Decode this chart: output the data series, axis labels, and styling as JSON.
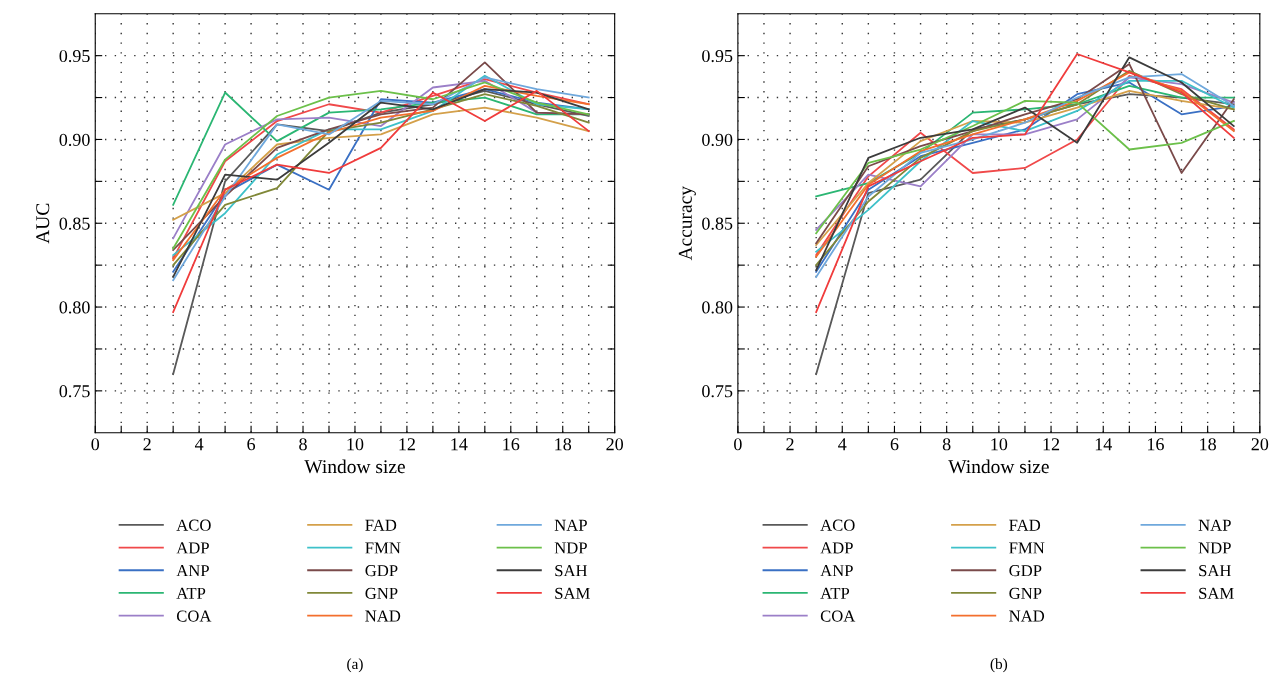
{
  "chart_data": [
    {
      "type": "line",
      "xlabel": "Window size",
      "ylabel": "AUC",
      "annotations": [
        "(a)"
      ],
      "x": [
        3,
        5,
        7,
        9,
        11,
        13,
        15,
        17,
        19
      ],
      "xlim": [
        0,
        20
      ],
      "xticks": [
        0,
        {
          "value": 1,
          "label": null
        },
        2,
        {
          "value": 3,
          "label": null
        },
        4,
        {
          "value": 5,
          "label": null
        },
        6,
        {
          "value": 7,
          "label": null
        },
        8,
        {
          "value": 9,
          "label": null
        },
        10,
        {
          "value": 11,
          "label": null
        },
        12,
        {
          "value": 13,
          "label": null
        },
        14,
        {
          "value": 15,
          "label": null
        },
        16,
        {
          "value": 17,
          "label": null
        },
        18,
        {
          "value": 19,
          "label": null
        },
        20
      ],
      "ylim": [
        0.725,
        0.975
      ],
      "yticks": [
        {
          "value": 0.75,
          "label": "0.75"
        },
        {
          "value": 0.775,
          "label": null
        },
        {
          "value": 0.8,
          "label": "0.80"
        },
        {
          "value": 0.825,
          "label": null
        },
        {
          "value": 0.85,
          "label": "0.85"
        },
        {
          "value": 0.875,
          "label": null
        },
        {
          "value": 0.9,
          "label": "0.90"
        },
        {
          "value": 0.925,
          "label": null
        },
        {
          "value": 0.95,
          "label": "0.95"
        }
      ],
      "grid": true,
      "legend": "bottom",
      "marker": "none",
      "line_style": "solid",
      "series": [
        {
          "name": "ACO",
          "color": "#595959",
          "values": [
            0.76,
            0.875,
            0.909,
            0.905,
            0.916,
            0.921,
            0.929,
            0.921,
            0.914
          ]
        },
        {
          "name": "ADP",
          "color": "#f0494a",
          "values": [
            0.829,
            0.887,
            0.911,
            0.921,
            0.916,
            0.926,
            0.936,
            0.928,
            0.921
          ]
        },
        {
          "name": "ANP",
          "color": "#3a70c4",
          "values": [
            0.821,
            0.868,
            0.885,
            0.87,
            0.924,
            0.922,
            0.93,
            0.922,
            0.918
          ]
        },
        {
          "name": "ATP",
          "color": "#2bb673",
          "values": [
            0.861,
            0.928,
            0.899,
            0.916,
            0.918,
            0.922,
            0.925,
            0.915,
            0.915
          ]
        },
        {
          "name": "COA",
          "color": "#9b7fc8",
          "values": [
            0.841,
            0.897,
            0.912,
            0.913,
            0.908,
            0.931,
            0.935,
            0.916,
            0.915
          ]
        },
        {
          "name": "FAD",
          "color": "#d4a04a",
          "values": [
            0.852,
            0.868,
            0.897,
            0.901,
            0.903,
            0.915,
            0.919,
            0.913,
            0.905
          ]
        },
        {
          "name": "FMN",
          "color": "#3ec1c9",
          "values": [
            0.831,
            0.856,
            0.891,
            0.906,
            0.906,
            0.917,
            0.938,
            0.921,
            0.918
          ]
        },
        {
          "name": "GDP",
          "color": "#7a4a4a",
          "values": [
            0.834,
            0.866,
            0.895,
            0.906,
            0.915,
            0.919,
            0.946,
            0.916,
            0.915
          ]
        },
        {
          "name": "GNP",
          "color": "#808838",
          "values": [
            0.825,
            0.861,
            0.871,
            0.905,
            0.91,
            0.918,
            0.927,
            0.92,
            0.91
          ]
        },
        {
          "name": "NAD",
          "color": "#f36f2d",
          "values": [
            0.828,
            0.87,
            0.889,
            0.904,
            0.913,
            0.917,
            0.932,
            0.926,
            0.921
          ]
        },
        {
          "name": "NAP",
          "color": "#6fa8dc",
          "values": [
            0.816,
            0.866,
            0.909,
            0.903,
            0.923,
            0.921,
            0.937,
            0.93,
            0.925
          ]
        },
        {
          "name": "NDP",
          "color": "#6cc04a",
          "values": [
            0.835,
            0.888,
            0.914,
            0.925,
            0.929,
            0.924,
            0.934,
            0.922,
            0.915
          ]
        },
        {
          "name": "SAH",
          "color": "#3c3c3c",
          "values": [
            0.818,
            0.879,
            0.876,
            0.898,
            0.922,
            0.918,
            0.93,
            0.928,
            0.918
          ]
        },
        {
          "name": "SAM",
          "color": "#f03c3c",
          "values": [
            0.797,
            0.87,
            0.885,
            0.88,
            0.895,
            0.928,
            0.911,
            0.929,
            0.905
          ]
        }
      ]
    },
    {
      "type": "line",
      "xlabel": "Window size",
      "ylabel": "Accuracy",
      "annotations": [
        "(b)"
      ],
      "x": [
        3,
        5,
        7,
        9,
        11,
        13,
        15,
        17,
        19
      ],
      "xlim": [
        0,
        20
      ],
      "xticks": [
        0,
        {
          "value": 1,
          "label": null
        },
        2,
        {
          "value": 3,
          "label": null
        },
        4,
        {
          "value": 5,
          "label": null
        },
        6,
        {
          "value": 7,
          "label": null
        },
        8,
        {
          "value": 9,
          "label": null
        },
        10,
        {
          "value": 11,
          "label": null
        },
        12,
        {
          "value": 13,
          "label": null
        },
        14,
        {
          "value": 15,
          "label": null
        },
        16,
        {
          "value": 17,
          "label": null
        },
        18,
        {
          "value": 19,
          "label": null
        },
        20
      ],
      "ylim": [
        0.725,
        0.975
      ],
      "yticks": [
        {
          "value": 0.75,
          "label": "0.75"
        },
        {
          "value": 0.775,
          "label": null
        },
        {
          "value": 0.8,
          "label": "0.80"
        },
        {
          "value": 0.825,
          "label": null
        },
        {
          "value": 0.85,
          "label": "0.85"
        },
        {
          "value": 0.875,
          "label": null
        },
        {
          "value": 0.9,
          "label": "0.90"
        },
        {
          "value": 0.925,
          "label": null
        },
        {
          "value": 0.95,
          "label": "0.95"
        }
      ],
      "grid": true,
      "legend": "bottom",
      "marker": "none",
      "line_style": "solid",
      "series": [
        {
          "name": "ACO",
          "color": "#595959",
          "values": [
            0.76,
            0.868,
            0.876,
            0.906,
            0.912,
            0.921,
            0.927,
            0.925,
            0.921
          ]
        },
        {
          "name": "ADP",
          "color": "#f0494a",
          "values": [
            0.831,
            0.878,
            0.904,
            0.88,
            0.883,
            0.9,
            0.938,
            0.93,
            0.906
          ]
        },
        {
          "name": "ANP",
          "color": "#3a70c4",
          "values": [
            0.821,
            0.87,
            0.89,
            0.898,
            0.906,
            0.927,
            0.934,
            0.915,
            0.92
          ]
        },
        {
          "name": "ATP",
          "color": "#2bb673",
          "values": [
            0.866,
            0.874,
            0.892,
            0.916,
            0.918,
            0.921,
            0.932,
            0.925,
            0.925
          ]
        },
        {
          "name": "COA",
          "color": "#9b7fc8",
          "values": [
            0.846,
            0.879,
            0.872,
            0.903,
            0.903,
            0.912,
            0.937,
            0.933,
            0.922
          ]
        },
        {
          "name": "FAD",
          "color": "#d4a04a",
          "values": [
            0.837,
            0.874,
            0.899,
            0.911,
            0.91,
            0.919,
            0.929,
            0.923,
            0.918
          ]
        },
        {
          "name": "FMN",
          "color": "#3ec1c9",
          "values": [
            0.833,
            0.858,
            0.887,
            0.911,
            0.905,
            0.917,
            0.935,
            0.935,
            0.919
          ]
        },
        {
          "name": "GDP",
          "color": "#7a4a4a",
          "values": [
            0.838,
            0.884,
            0.896,
            0.905,
            0.915,
            0.924,
            0.945,
            0.88,
            0.924
          ]
        },
        {
          "name": "GNP",
          "color": "#808838",
          "values": [
            0.825,
            0.863,
            0.889,
            0.905,
            0.912,
            0.921,
            0.941,
            0.927,
            0.918
          ]
        },
        {
          "name": "NAD",
          "color": "#f36f2d",
          "values": [
            0.83,
            0.873,
            0.893,
            0.903,
            0.912,
            0.923,
            0.94,
            0.929,
            0.905
          ]
        },
        {
          "name": "NAP",
          "color": "#6fa8dc",
          "values": [
            0.818,
            0.866,
            0.892,
            0.9,
            0.91,
            0.925,
            0.937,
            0.939,
            0.92
          ]
        },
        {
          "name": "NDP",
          "color": "#6cc04a",
          "values": [
            0.844,
            0.886,
            0.894,
            0.908,
            0.923,
            0.922,
            0.894,
            0.898,
            0.911
          ]
        },
        {
          "name": "SAH",
          "color": "#3c3c3c",
          "values": [
            0.822,
            0.889,
            0.901,
            0.906,
            0.919,
            0.898,
            0.949,
            0.934,
            0.908
          ]
        },
        {
          "name": "SAM",
          "color": "#f03c3c",
          "values": [
            0.797,
            0.872,
            0.887,
            0.901,
            0.903,
            0.951,
            0.94,
            0.928,
            0.901
          ]
        }
      ]
    }
  ]
}
